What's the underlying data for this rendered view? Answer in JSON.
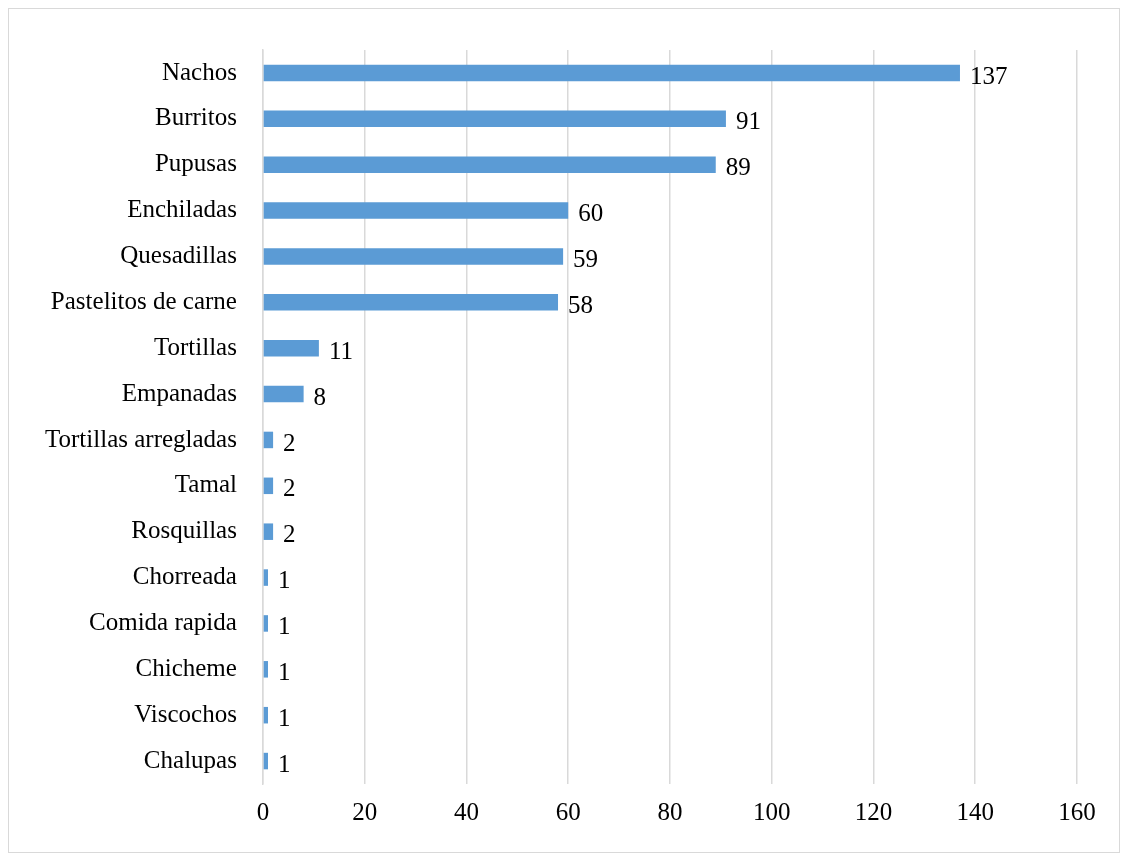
{
  "chart_data": {
    "type": "bar",
    "orientation": "horizontal",
    "categories": [
      "Nachos",
      "Burritos",
      "Pupusas",
      "Enchiladas",
      "Quesadillas",
      "Pastelitos de carne",
      "Tortillas",
      "Empanadas",
      "Tortillas arregladas",
      "Tamal",
      "Rosquillas",
      "Chorreada",
      "Comida rapida",
      "Chicheme",
      "Viscochos",
      "Chalupas"
    ],
    "values": [
      137,
      91,
      89,
      60,
      59,
      58,
      11,
      8,
      2,
      2,
      2,
      1,
      1,
      1,
      1,
      1
    ],
    "color": "#5b9bd5",
    "xlim": [
      0,
      160
    ],
    "xticks": [
      0,
      20,
      40,
      60,
      80,
      100,
      120,
      140,
      160
    ],
    "grid": "x",
    "data_labels": true,
    "legend": false
  }
}
